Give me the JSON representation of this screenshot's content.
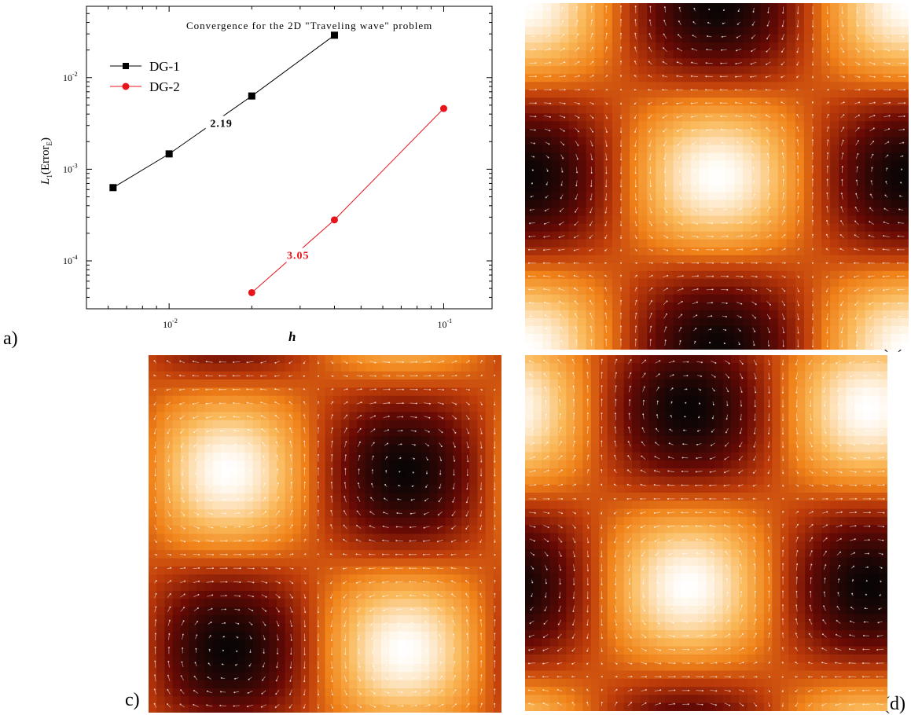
{
  "panels": {
    "a": "a)",
    "b": "(b)",
    "c": "c)",
    "d": "(d)"
  },
  "chart_data": {
    "type": "scatter",
    "title": "Convergence for the 2D \"Traveling wave\" problem",
    "xlabel": "h",
    "ylabel_main": "L",
    "ylabel_sub1": "1",
    "ylabel_text": "(Error",
    "ylabel_sub2": "E",
    "ylabel_close": ")",
    "xscale": "log",
    "yscale": "log",
    "xlim": [
      0.005,
      0.15
    ],
    "ylim": [
      3e-05,
      0.06
    ],
    "x_ticks": [
      {
        "value": 0.01,
        "mantissa": "10",
        "exp": "-2"
      },
      {
        "value": 0.1,
        "mantissa": "10",
        "exp": "-1"
      }
    ],
    "y_ticks": [
      {
        "value": 0.0001,
        "mantissa": "10",
        "exp": "-4"
      },
      {
        "value": 0.001,
        "mantissa": "10",
        "exp": "-3"
      },
      {
        "value": 0.01,
        "mantissa": "10",
        "exp": "-2"
      }
    ],
    "legend_position": "top-left",
    "series": [
      {
        "name": "DG-1",
        "color": "#000000",
        "marker": "square",
        "x": [
          0.00625,
          0.01,
          0.02,
          0.04
        ],
        "y": [
          0.00063,
          0.00147,
          0.0063,
          0.029
        ],
        "slope_label": "2.19",
        "slope_label_at": [
          0.0155,
          0.0029
        ]
      },
      {
        "name": "DG-2",
        "color": "#e8141c",
        "marker": "circle",
        "x": [
          0.02,
          0.04,
          0.1
        ],
        "y": [
          4.5e-05,
          0.00028,
          0.0046
        ],
        "slope_label": "3.05",
        "slope_label_at": [
          0.0295,
          0.000105
        ]
      }
    ]
  },
  "fields": [
    {
      "id": "b",
      "phase_x": 0.0,
      "phase_y": 0.0
    },
    {
      "id": "c",
      "phase_x": 0.55,
      "phase_y": 0.35
    },
    {
      "id": "d",
      "phase_x": 1.1,
      "phase_y": 0.7
    }
  ]
}
